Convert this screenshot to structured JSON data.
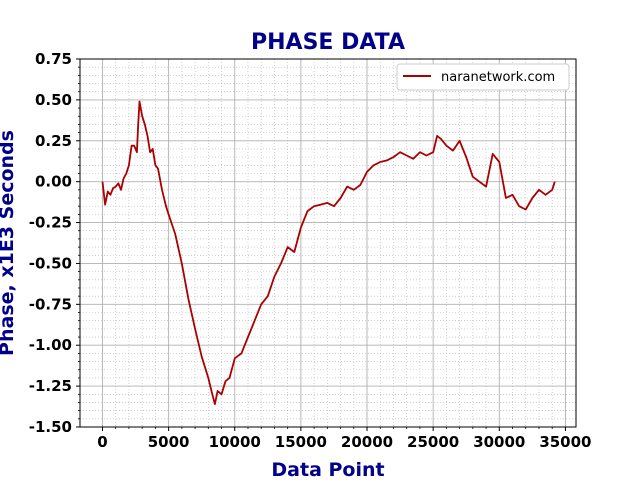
{
  "chart_data": {
    "type": "line",
    "title": "PHASE DATA",
    "xlabel": "Data Point",
    "ylabel": "Phase, x1E3 Seconds",
    "xlim": [
      -1700,
      35800
    ],
    "ylim": [
      -1.5,
      0.75
    ],
    "xticks": [
      0,
      5000,
      10000,
      15000,
      20000,
      25000,
      30000,
      35000
    ],
    "xtick_labels": [
      "0",
      "5000",
      "10000",
      "15000",
      "20000",
      "25000",
      "30000",
      "35000"
    ],
    "yticks": [
      0.75,
      0.5,
      0.25,
      0.0,
      -0.25,
      -0.5,
      -0.75,
      -1.0,
      -1.25,
      -1.5
    ],
    "ytick_labels": [
      "0.75",
      "0.50",
      "0.25",
      "0.00",
      "-0.25",
      "-0.50",
      "-0.75",
      "-1.00",
      "-1.25",
      "-1.50"
    ],
    "grid": true,
    "legend": "top-right",
    "series": [
      {
        "name": "naranetwork.com",
        "color": "#aa0000",
        "x": [
          0,
          200,
          400,
          600,
          800,
          1000,
          1200,
          1400,
          1600,
          1800,
          2000,
          2200,
          2400,
          2600,
          2700,
          2800,
          3000,
          3200,
          3400,
          3600,
          3800,
          4000,
          4200,
          4500,
          4800,
          5000,
          5500,
          6000,
          6500,
          7000,
          7500,
          8000,
          8300,
          8500,
          8700,
          9000,
          9300,
          9600,
          10000,
          10500,
          11000,
          11500,
          12000,
          12500,
          13000,
          13500,
          14000,
          14500,
          15000,
          15500,
          16000,
          16500,
          17000,
          17500,
          18000,
          18500,
          19000,
          19500,
          20000,
          20500,
          21000,
          21500,
          22000,
          22500,
          23000,
          23500,
          24000,
          24500,
          25000,
          25300,
          25600,
          26000,
          26500,
          27000,
          27500,
          28000,
          28500,
          29000,
          29500,
          30000,
          30500,
          31000,
          31500,
          32000,
          32500,
          33000,
          33500,
          34000,
          34200
        ],
        "values": [
          0.0,
          -0.14,
          -0.06,
          -0.08,
          -0.04,
          -0.03,
          -0.01,
          -0.05,
          0.02,
          0.05,
          0.1,
          0.22,
          0.22,
          0.18,
          0.35,
          0.49,
          0.4,
          0.35,
          0.28,
          0.18,
          0.2,
          0.1,
          0.08,
          -0.05,
          -0.15,
          -0.2,
          -0.32,
          -0.5,
          -0.72,
          -0.9,
          -1.07,
          -1.2,
          -1.3,
          -1.36,
          -1.28,
          -1.3,
          -1.22,
          -1.2,
          -1.08,
          -1.05,
          -0.95,
          -0.85,
          -0.75,
          -0.7,
          -0.58,
          -0.5,
          -0.4,
          -0.43,
          -0.28,
          -0.18,
          -0.15,
          -0.14,
          -0.13,
          -0.15,
          -0.1,
          -0.03,
          -0.05,
          -0.02,
          0.06,
          0.1,
          0.12,
          0.13,
          0.15,
          0.18,
          0.16,
          0.14,
          0.18,
          0.16,
          0.18,
          0.28,
          0.26,
          0.22,
          0.19,
          0.25,
          0.15,
          0.03,
          0.0,
          -0.03,
          0.17,
          0.12,
          -0.1,
          -0.08,
          -0.15,
          -0.17,
          -0.1,
          -0.05,
          -0.08,
          -0.05,
          0.0
        ]
      }
    ]
  }
}
